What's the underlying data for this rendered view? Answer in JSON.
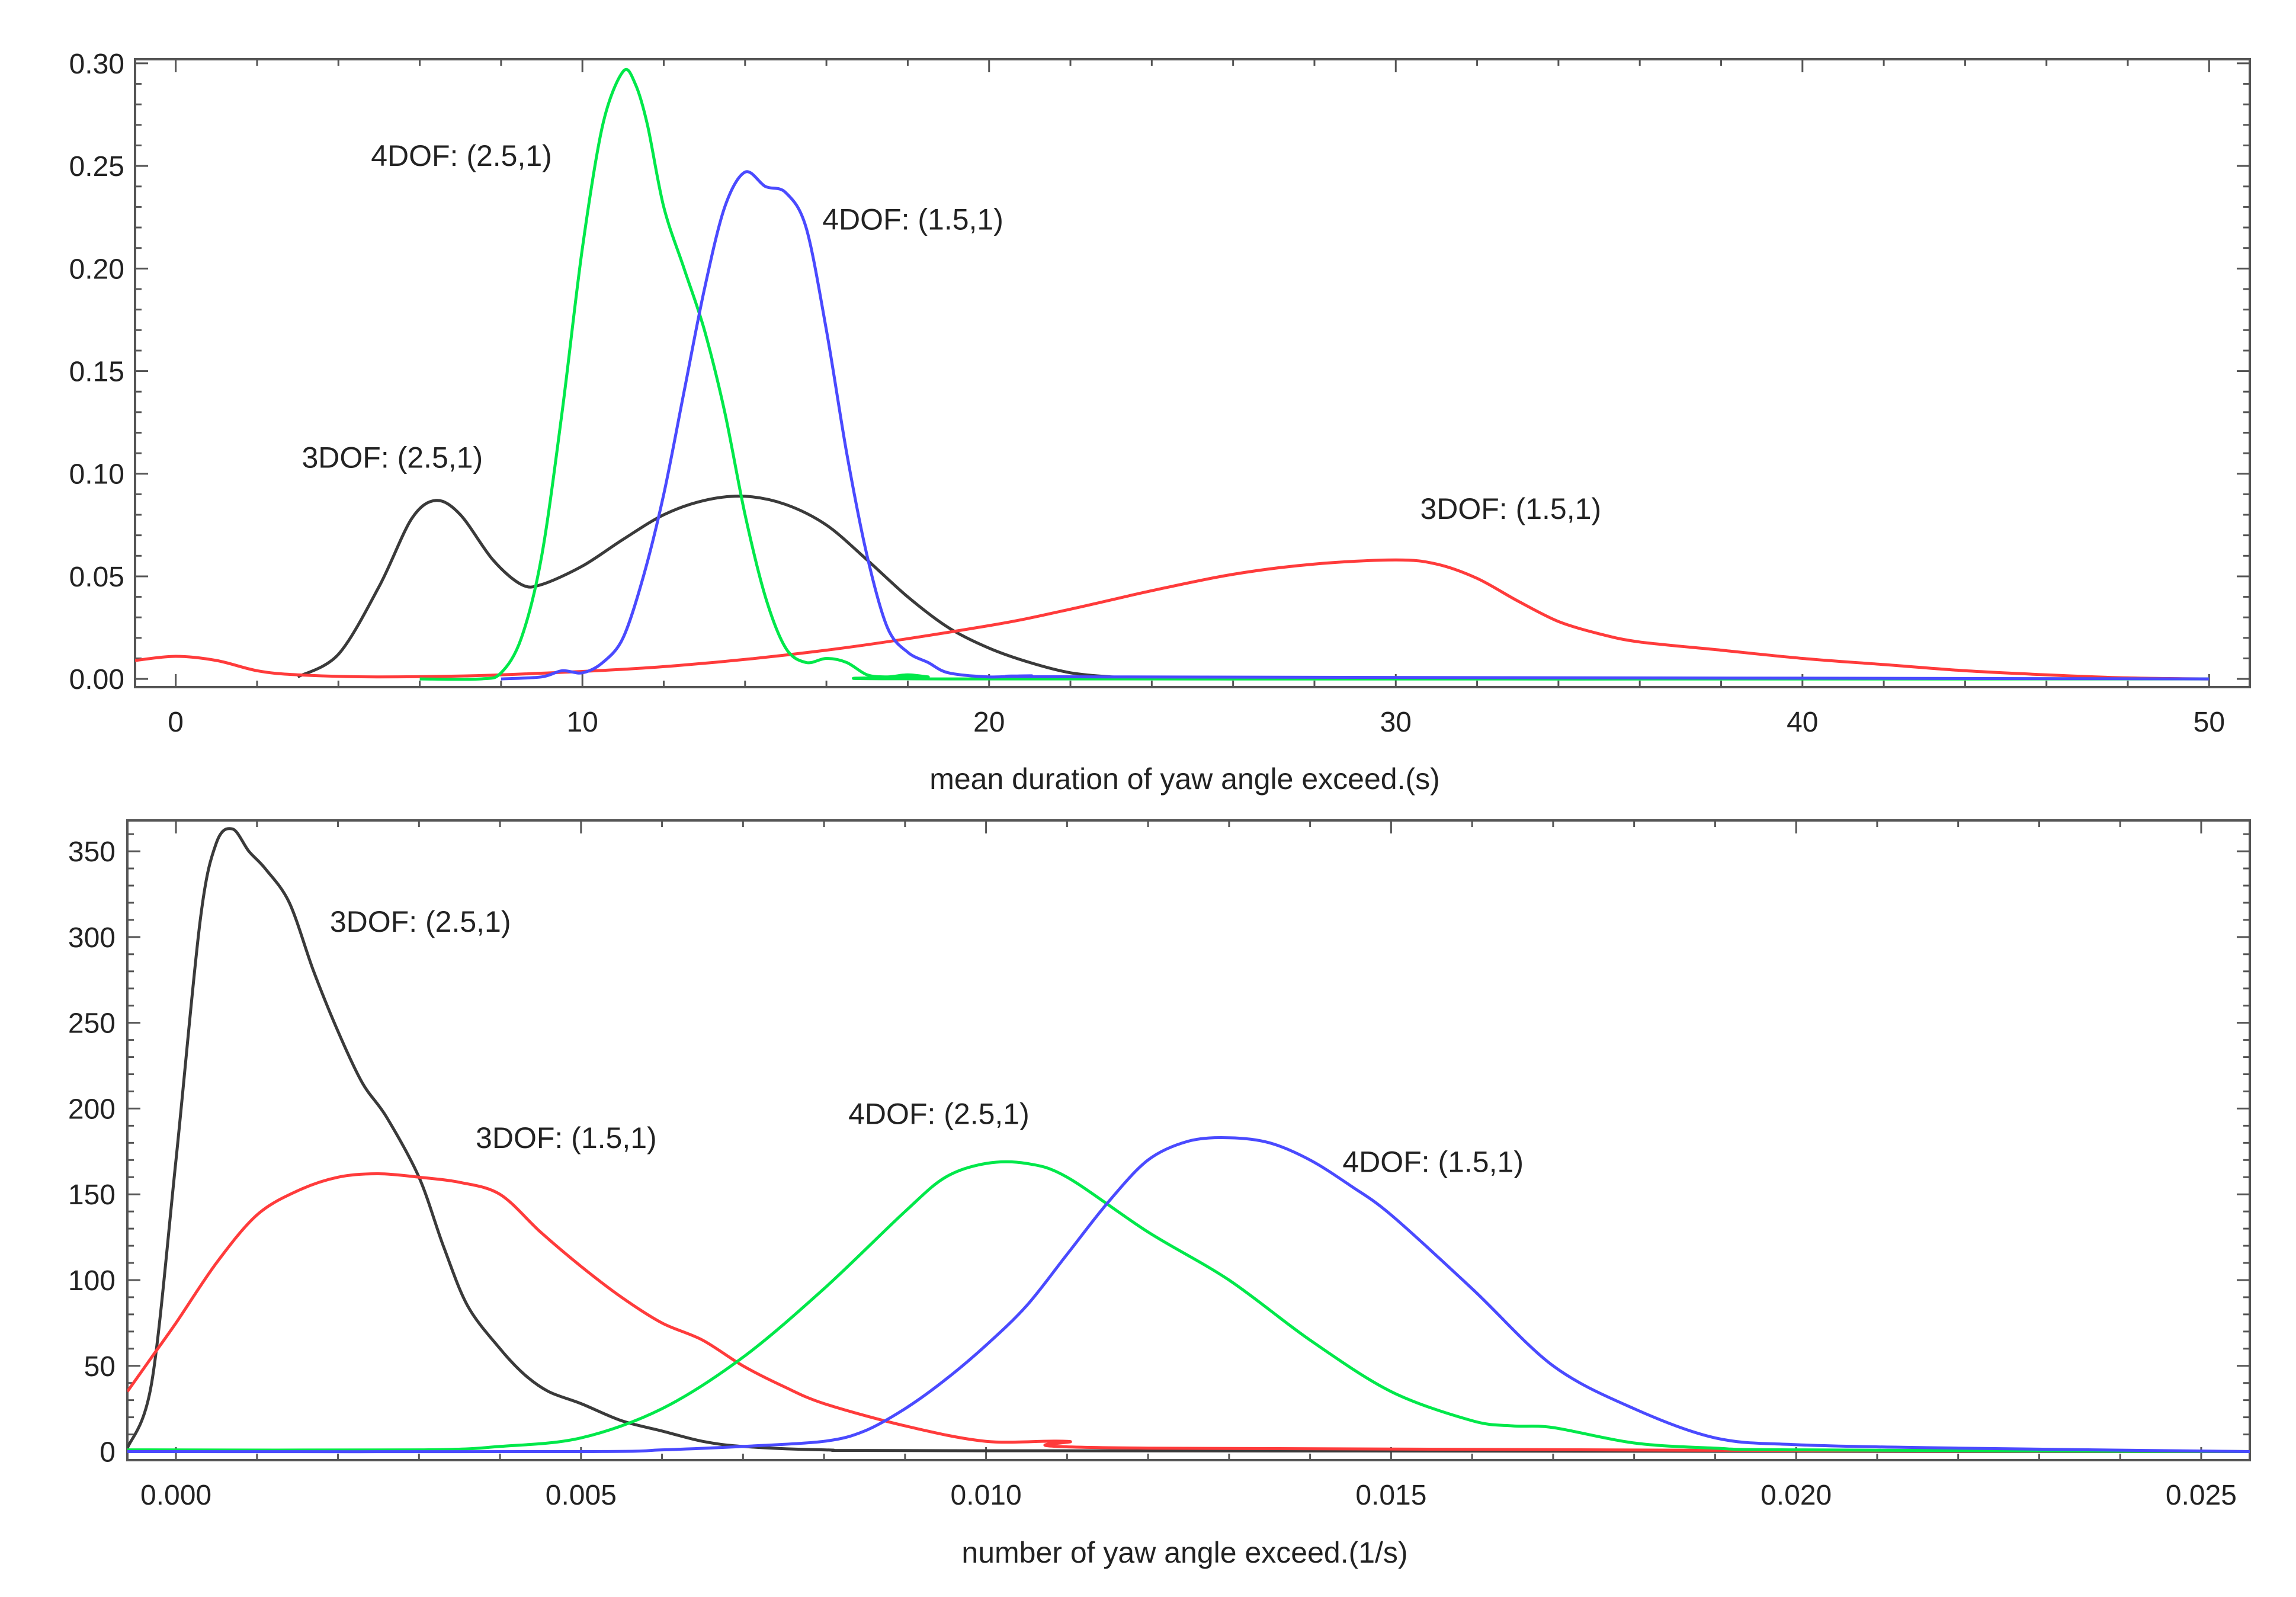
{
  "chart_data": [
    {
      "type": "line",
      "xlabel": "mean duration of yaw angle exceed.(s)",
      "ylabel": "",
      "xlim": [
        -1,
        51
      ],
      "ylim": [
        -0.004,
        0.302
      ],
      "xticks": [
        0,
        10,
        20,
        30,
        40,
        50
      ],
      "xtick_labels": [
        "0",
        "10",
        "20",
        "30",
        "40",
        "50"
      ],
      "yticks": [
        0,
        0.05,
        0.1,
        0.15,
        0.2,
        0.25,
        0.3
      ],
      "ytick_labels": [
        "0.00",
        "0.05",
        "0.10",
        "0.15",
        "0.20",
        "0.25",
        "0.30"
      ],
      "grid": false,
      "series": [
        {
          "name": "3DOF: (2.5,1)",
          "label": "3DOF: (2.5,1)",
          "color": "#3a3a3a",
          "label_at": [
            3.1,
            0.103
          ],
          "x": [
            3,
            4,
            5,
            5.8,
            6.4,
            7,
            7.8,
            8.5,
            9,
            10,
            11,
            12,
            13,
            14,
            15,
            16,
            17,
            18,
            19,
            20,
            21,
            22,
            23,
            24,
            26
          ],
          "y": [
            0.001,
            0.012,
            0.045,
            0.078,
            0.087,
            0.08,
            0.058,
            0.046,
            0.046,
            0.055,
            0.068,
            0.08,
            0.087,
            0.089,
            0.085,
            0.075,
            0.058,
            0.04,
            0.025,
            0.015,
            0.008,
            0.003,
            0.001,
            0.0003,
            0
          ]
        },
        {
          "name": "3DOF: (1.5,1)",
          "label": "3DOF: (1.5,1)",
          "color": "#ff3b3b",
          "label_at": [
            30.6,
            0.078
          ],
          "x": [
            -1,
            0,
            1,
            2,
            3,
            5,
            8,
            12,
            16,
            20,
            22,
            24,
            26,
            28,
            30,
            31,
            32,
            33,
            34,
            35,
            36,
            38,
            40,
            42,
            44,
            46,
            48,
            50
          ],
          "y": [
            0.009,
            0.011,
            0.009,
            0.004,
            0.002,
            0.001,
            0.002,
            0.006,
            0.014,
            0.026,
            0.034,
            0.043,
            0.051,
            0.056,
            0.058,
            0.056,
            0.049,
            0.038,
            0.028,
            0.022,
            0.018,
            0.014,
            0.01,
            0.007,
            0.004,
            0.002,
            0.0005,
            0
          ]
        },
        {
          "name": "4DOF: (2.5,1)",
          "label": "4DOF: (2.5,1)",
          "color": "#00e84a",
          "label_at": [
            4.8,
            0.25
          ],
          "x": [
            6,
            7.5,
            8,
            8.5,
            9,
            9.5,
            10,
            10.5,
            11,
            11.3,
            11.6,
            12,
            12.5,
            13,
            13.5,
            14,
            14.5,
            15,
            15.5,
            16,
            16.5,
            17,
            17.5,
            18,
            18.5,
            19,
            50
          ],
          "y": [
            0,
            0,
            0.003,
            0.02,
            0.06,
            0.13,
            0.21,
            0.27,
            0.296,
            0.29,
            0.27,
            0.23,
            0.2,
            0.17,
            0.13,
            0.08,
            0.04,
            0.015,
            0.008,
            0.01,
            0.008,
            0.002,
            0.001,
            0.002,
            0.001,
            0,
            0
          ]
        },
        {
          "name": "4DOF: (1.5,1)",
          "label": "4DOF: (1.5,1)",
          "color": "#4a4aff",
          "label_at": [
            15.9,
            0.219
          ],
          "x": [
            8,
            9,
            9.5,
            10,
            10.5,
            11,
            11.5,
            12,
            12.5,
            13,
            13.5,
            14,
            14.5,
            15,
            15.5,
            16,
            16.5,
            17,
            17.5,
            18,
            18.5,
            19,
            20,
            21,
            23,
            50
          ],
          "y": [
            0,
            0.001,
            0.004,
            0.003,
            0.008,
            0.02,
            0.05,
            0.09,
            0.14,
            0.19,
            0.23,
            0.247,
            0.24,
            0.237,
            0.22,
            0.17,
            0.11,
            0.06,
            0.025,
            0.013,
            0.008,
            0.003,
            0.001,
            0.0015,
            0.001,
            0
          ]
        }
      ]
    },
    {
      "type": "line",
      "xlabel": "number of yaw angle exceed.(1/s)",
      "ylabel": "",
      "xlim": [
        -0.0006,
        0.0256
      ],
      "ylim": [
        -5,
        368
      ],
      "xticks": [
        0,
        0.005,
        0.01,
        0.015,
        0.02,
        0.025
      ],
      "xtick_labels": [
        "0.000",
        "0.005",
        "0.010",
        "0.015",
        "0.020",
        "0.025"
      ],
      "yticks": [
        0,
        50,
        100,
        150,
        200,
        250,
        300,
        350
      ],
      "ytick_labels": [
        "0",
        "50",
        "100",
        "150",
        "200",
        "250",
        "300",
        "350"
      ],
      "grid": false,
      "series": [
        {
          "name": "3DOF: (2.5,1)",
          "label": "3DOF: (2.5,1)",
          "color": "#3a3a3a",
          "label_at": [
            0.0019,
            303
          ],
          "x": [
            -0.0006,
            -0.0003,
            0,
            0.0003,
            0.0005,
            0.0007,
            0.0009,
            0.0011,
            0.0014,
            0.0017,
            0.002,
            0.0023,
            0.0026,
            0.003,
            0.0033,
            0.0036,
            0.004,
            0.0043,
            0.0046,
            0.005,
            0.0055,
            0.006,
            0.0065,
            0.007,
            0.008,
            0.01,
            0.0256
          ],
          "y": [
            2,
            40,
            170,
            310,
            355,
            363,
            350,
            340,
            320,
            280,
            245,
            215,
            195,
            160,
            120,
            85,
            60,
            45,
            35,
            28,
            18,
            12,
            6,
            3,
            1,
            0.5,
            0
          ]
        },
        {
          "name": "3DOF: (1.5,1)",
          "label": "3DOF: (1.5,1)",
          "color": "#ff3b3b",
          "label_at": [
            0.0037,
            177
          ],
          "x": [
            -0.0006,
            -0.0003,
            0,
            0.0005,
            0.001,
            0.0015,
            0.002,
            0.0025,
            0.003,
            0.0035,
            0.004,
            0.0045,
            0.005,
            0.0055,
            0.006,
            0.0065,
            0.007,
            0.0075,
            0.008,
            0.009,
            0.01,
            0.011,
            0.012,
            0.0256
          ],
          "y": [
            35,
            55,
            75,
            110,
            138,
            152,
            160,
            162,
            160,
            157,
            150,
            128,
            108,
            90,
            75,
            65,
            50,
            38,
            28,
            15,
            6,
            6,
            2,
            0
          ]
        },
        {
          "name": "4DOF: (2.5,1)",
          "label": "4DOF: (2.5,1)",
          "color": "#00e84a",
          "label_at": [
            0.0083,
            191
          ],
          "x": [
            -0.0006,
            0.003,
            0.004,
            0.005,
            0.006,
            0.007,
            0.008,
            0.009,
            0.0095,
            0.01,
            0.0105,
            0.011,
            0.012,
            0.013,
            0.014,
            0.015,
            0.016,
            0.0165,
            0.017,
            0.018,
            0.019,
            0.02,
            0.0256
          ],
          "y": [
            1,
            1,
            3,
            8,
            25,
            55,
            95,
            140,
            160,
            168,
            168,
            160,
            128,
            100,
            65,
            35,
            18,
            15,
            14,
            5,
            2,
            1,
            0
          ]
        },
        {
          "name": "4DOF: (1.5,1)",
          "label": "4DOF: (1.5,1)",
          "color": "#4a4aff",
          "label_at": [
            0.0144,
            163
          ],
          "x": [
            -0.0006,
            0.005,
            0.006,
            0.007,
            0.008,
            0.0085,
            0.009,
            0.0095,
            0.01,
            0.0105,
            0.011,
            0.0115,
            0.012,
            0.0125,
            0.013,
            0.0135,
            0.014,
            0.0145,
            0.015,
            0.016,
            0.017,
            0.018,
            0.019,
            0.02,
            0.022,
            0.0256
          ],
          "y": [
            0,
            0,
            1,
            3,
            6,
            12,
            25,
            42,
            62,
            85,
            115,
            145,
            170,
            181,
            183,
            180,
            170,
            155,
            138,
            95,
            50,
            25,
            8,
            4,
            2,
            0
          ]
        }
      ]
    }
  ]
}
